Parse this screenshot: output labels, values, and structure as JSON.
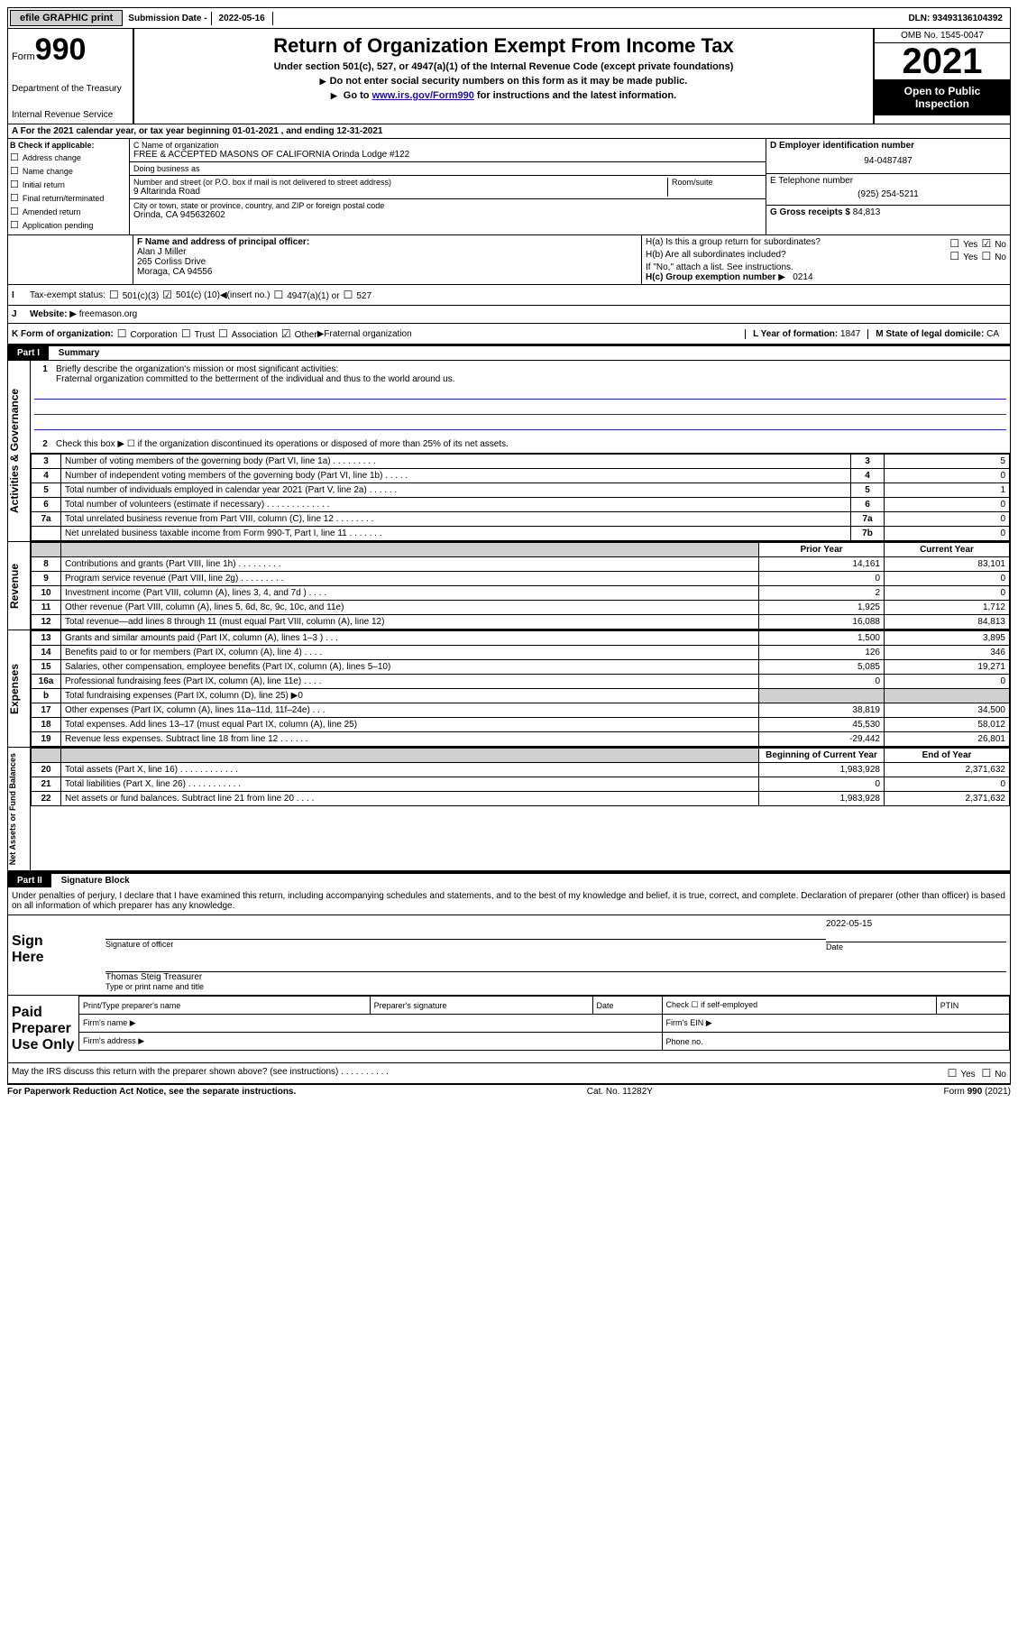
{
  "topbar": {
    "efile": "efile GRAPHIC print",
    "subdate_label": "Submission Date - ",
    "subdate": "2022-05-16",
    "dln_label": "DLN: ",
    "dln": "93493136104392"
  },
  "header": {
    "form_word": "Form",
    "form_num": "990",
    "dept": "Department of the Treasury",
    "irs": "Internal Revenue Service",
    "title": "Return of Organization Exempt From Income Tax",
    "sub1": "Under section 501(c), 527, or 4947(a)(1) of the Internal Revenue Code (except private foundations)",
    "sub2": "Do not enter social security numbers on this form as it may be made public.",
    "sub3_pre": "Go to ",
    "sub3_link": "www.irs.gov/Form990",
    "sub3_post": " for instructions and the latest information.",
    "omb": "OMB No. 1545-0047",
    "year": "2021",
    "inspection": "Open to Public Inspection"
  },
  "row_a": "For the 2021 calendar year, or tax year beginning 01-01-2021   , and ending 12-31-2021",
  "col_b": {
    "title": "B Check if applicable:",
    "items": [
      "Address change",
      "Name change",
      "Initial return",
      "Final return/terminated",
      "Amended return",
      "Application pending"
    ]
  },
  "col_c": {
    "name_label": "C Name of organization",
    "name": "FREE & ACCEPTED MASONS OF CALIFORNIA Orinda Lodge #122",
    "dba_label": "Doing business as",
    "dba": "",
    "street_label": "Number and street (or P.O. box if mail is not delivered to street address)",
    "street": "9 Altarinda Road",
    "room_label": "Room/suite",
    "city_label": "City or town, state or province, country, and ZIP or foreign postal code",
    "city": "Orinda, CA  945632602"
  },
  "col_d": {
    "d_label": "D Employer identification number",
    "d_val": "94-0487487",
    "e_label": "E Telephone number",
    "e_val": "(925) 254-5211",
    "g_label": "G Gross receipts $ ",
    "g_val": "84,813"
  },
  "row_f": {
    "f_label": "F  Name and address of principal officer:",
    "f_name": "Alan J Miller",
    "f_addr1": "265 Corliss Drive",
    "f_addr2": "Moraga, CA  94556",
    "ha_label": "H(a)  Is this a group return for subordinates?",
    "ha_yes": "Yes",
    "ha_no": "No",
    "hb_label": "H(b)  Are all subordinates included?",
    "hb_note": "If \"No,\" attach a list. See instructions.",
    "hc_label": "H(c)  Group exemption number",
    "hc_val": "0214"
  },
  "row_i": {
    "label": "Tax-exempt status:",
    "opt1": "501(c)(3)",
    "opt2a": "501(c) (",
    "opt2b": "10",
    "opt2c": ") ",
    "opt2_insert": "(insert no.)",
    "opt3": "4947(a)(1) or",
    "opt4": "527"
  },
  "row_j": {
    "label": "Website:",
    "val": "freemason.org"
  },
  "row_k": {
    "label": "K Form of organization:",
    "opts": [
      "Corporation",
      "Trust",
      "Association",
      "Other"
    ],
    "other_desc": "Fraternal organization",
    "l_label": "L Year of formation: ",
    "l_val": "1847",
    "m_label": "M State of legal domicile: ",
    "m_val": "CA"
  },
  "part1": {
    "header": "Part I",
    "title": "Summary",
    "line1_label": "Briefly describe the organization's mission or most significant activities:",
    "line1_text": "Fraternal organization committed to the betterment of the individual and thus to the world around us.",
    "line2": "Check this box ▶ ☐  if the organization discontinued its operations or disposed of more than 25% of its net assets.",
    "gov": [
      {
        "n": "3",
        "d": "Number of voting members of the governing body (Part VI, line 1a) . . . . . . . . .",
        "c": "3",
        "v": "5"
      },
      {
        "n": "4",
        "d": "Number of independent voting members of the governing body (Part VI, line 1b) . . . . .",
        "c": "4",
        "v": "0"
      },
      {
        "n": "5",
        "d": "Total number of individuals employed in calendar year 2021 (Part V, line 2a) . . . . . .",
        "c": "5",
        "v": "1"
      },
      {
        "n": "6",
        "d": "Total number of volunteers (estimate if necessary) . . . . . . . . . . . . .",
        "c": "6",
        "v": "0"
      },
      {
        "n": "7a",
        "d": "Total unrelated business revenue from Part VIII, column (C), line 12 . . . . . . . .",
        "c": "7a",
        "v": "0"
      },
      {
        "n": "",
        "d": "Net unrelated business taxable income from Form 990-T, Part I, line 11 . . . . . . .",
        "c": "7b",
        "v": "0"
      }
    ],
    "prior": "Prior Year",
    "current": "Current Year",
    "rev": [
      {
        "n": "8",
        "d": "Contributions and grants (Part VIII, line 1h) . . . . . . . . .",
        "p": "14,161",
        "c": "83,101"
      },
      {
        "n": "9",
        "d": "Program service revenue (Part VIII, line 2g) . . . . . . . . .",
        "p": "0",
        "c": "0"
      },
      {
        "n": "10",
        "d": "Investment income (Part VIII, column (A), lines 3, 4, and 7d ) . . . .",
        "p": "2",
        "c": "0"
      },
      {
        "n": "11",
        "d": "Other revenue (Part VIII, column (A), lines 5, 6d, 8c, 9c, 10c, and 11e)",
        "p": "1,925",
        "c": "1,712"
      },
      {
        "n": "12",
        "d": "Total revenue—add lines 8 through 11 (must equal Part VIII, column (A), line 12)",
        "p": "16,088",
        "c": "84,813"
      }
    ],
    "exp": [
      {
        "n": "13",
        "d": "Grants and similar amounts paid (Part IX, column (A), lines 1–3 ) . . .",
        "p": "1,500",
        "c": "3,895"
      },
      {
        "n": "14",
        "d": "Benefits paid to or for members (Part IX, column (A), line 4) . . . .",
        "p": "126",
        "c": "346"
      },
      {
        "n": "15",
        "d": "Salaries, other compensation, employee benefits (Part IX, column (A), lines 5–10)",
        "p": "5,085",
        "c": "19,271"
      },
      {
        "n": "16a",
        "d": "Professional fundraising fees (Part IX, column (A), line 11e) . . . .",
        "p": "0",
        "c": "0"
      },
      {
        "n": "b",
        "d": "Total fundraising expenses (Part IX, column (D), line 25) ▶0",
        "p": "",
        "c": "",
        "shade": true
      },
      {
        "n": "17",
        "d": "Other expenses (Part IX, column (A), lines 11a–11d, 11f–24e) . . .",
        "p": "38,819",
        "c": "34,500"
      },
      {
        "n": "18",
        "d": "Total expenses. Add lines 13–17 (must equal Part IX, column (A), line 25)",
        "p": "45,530",
        "c": "58,012"
      },
      {
        "n": "19",
        "d": "Revenue less expenses. Subtract line 18 from line 12 . . . . . .",
        "p": "-29,442",
        "c": "26,801"
      }
    ],
    "boy": "Beginning of Current Year",
    "eoy": "End of Year",
    "net": [
      {
        "n": "20",
        "d": "Total assets (Part X, line 16) . . . . . . . . . . . .",
        "p": "1,983,928",
        "c": "2,371,632"
      },
      {
        "n": "21",
        "d": "Total liabilities (Part X, line 26) . . . . . . . . . . .",
        "p": "0",
        "c": "0"
      },
      {
        "n": "22",
        "d": "Net assets or fund balances. Subtract line 21 from line 20 . . . .",
        "p": "1,983,928",
        "c": "2,371,632"
      }
    ],
    "vlabels": {
      "gov": "Activities & Governance",
      "rev": "Revenue",
      "exp": "Expenses",
      "net": "Net Assets or Fund Balances"
    }
  },
  "part2": {
    "header": "Part II",
    "title": "Signature Block",
    "decl": "Under penalties of perjury, I declare that I have examined this return, including accompanying schedules and statements, and to the best of my knowledge and belief, it is true, correct, and complete. Declaration of preparer (other than officer) is based on all information of which preparer has any knowledge.",
    "sign_here": "Sign Here",
    "sig_officer": "Signature of officer",
    "date_label": "Date",
    "date_val": "2022-05-15",
    "officer_name": "Thomas Steig Treasurer",
    "officer_sub": "Type or print name and title",
    "paid": "Paid Preparer Use Only",
    "prep_cols": [
      "Print/Type preparer's name",
      "Preparer's signature",
      "Date",
      "Check ☐ if self-employed",
      "PTIN"
    ],
    "firm_name_l": "Firm's name  ▶",
    "firm_ein_l": "Firm's EIN ▶",
    "firm_addr_l": "Firm's address ▶",
    "phone_l": "Phone no.",
    "may_discuss": "May the IRS discuss this return with the preparer shown above? (see instructions) . . . . . . . . . .",
    "yes": "Yes",
    "no": "No"
  },
  "footer": {
    "left": "For Paperwork Reduction Act Notice, see the separate instructions.",
    "mid": "Cat. No. 11282Y",
    "right": "Form 990 (2021)"
  }
}
